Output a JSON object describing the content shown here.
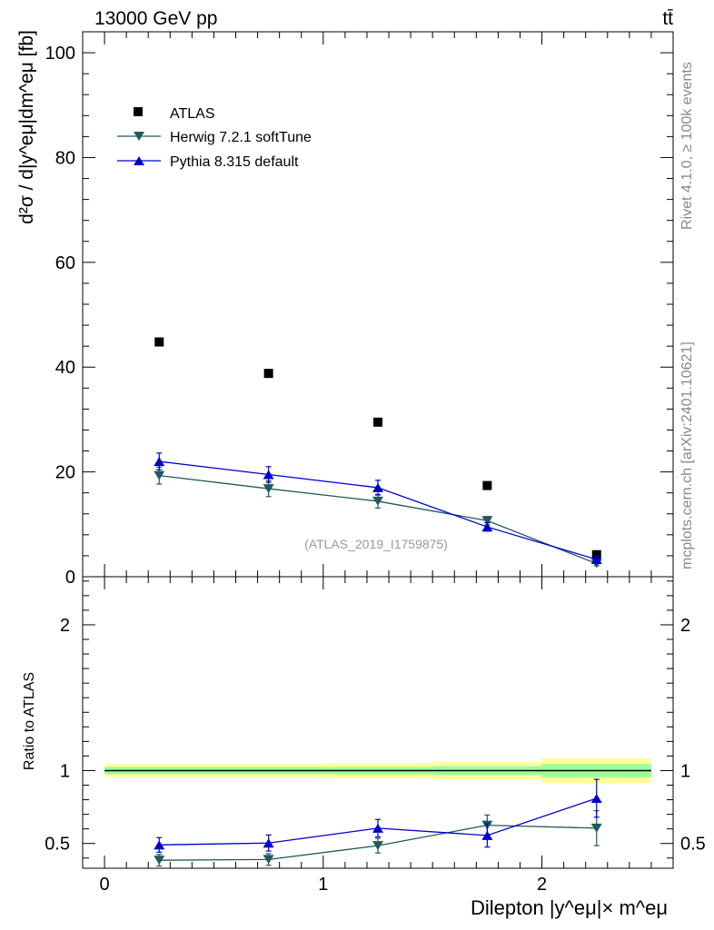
{
  "header": {
    "left": "13000 GeV pp",
    "right": "tt̄"
  },
  "side_labels": {
    "rivet": "Rivet 4.1.0, ≥ 100k events",
    "mcplots": "mcplots.cern.ch [arXiv:2401.10621]"
  },
  "analysis_id": "(ATLAS_2019_I1759875)",
  "colors": {
    "atlas": "#000000",
    "herwig": "#1e5b5b",
    "pythia": "#0000cc",
    "band_inner": "#99ff99",
    "band_outer": "#ffff99"
  },
  "chart_data": [
    {
      "type": "scatter",
      "panel": "main",
      "ylabel": "d²σ / d|y^eμ|dm^eμ [fb]",
      "ylim": [
        0,
        104
      ],
      "xlim": [
        -0.1,
        2.6
      ],
      "yticks": [
        0,
        20,
        40,
        60,
        80,
        100
      ],
      "ytick_labels": [
        "0",
        "20",
        "40",
        "60",
        "80",
        "100"
      ],
      "legend_position": "top-left",
      "x": [
        0.25,
        0.75,
        1.25,
        1.75,
        2.25
      ],
      "series": [
        {
          "name": "ATLAS",
          "marker": "square",
          "values": [
            44.8,
            38.8,
            29.5,
            17.4,
            4.2
          ]
        },
        {
          "name": "Herwig 7.2.1 softTune",
          "marker": "triangle-down",
          "values": [
            19.3,
            16.8,
            14.4,
            10.7,
            2.5
          ],
          "errors": [
            1.6,
            1.5,
            1.3,
            0.8,
            0.4
          ]
        },
        {
          "name": "Pythia 8.315 default",
          "marker": "triangle-up",
          "values": [
            22.0,
            19.5,
            17.0,
            9.5,
            3.3
          ],
          "errors": [
            1.6,
            1.5,
            1.4,
            0.8,
            0.6
          ]
        }
      ]
    },
    {
      "type": "line",
      "panel": "ratio",
      "ylabel": "Ratio to ATLAS",
      "xlabel": "Dilepton |y^eμ|× m^eμ",
      "ylim": [
        0.33,
        2.33
      ],
      "xlim": [
        -0.1,
        2.6
      ],
      "xticks": [
        0,
        1,
        2
      ],
      "xtick_labels": [
        "0",
        "1",
        "2"
      ],
      "ytick_labels_left": [
        "0.5",
        "1",
        "2"
      ],
      "ytick_labels_right": [
        "0.5",
        "1",
        "2"
      ],
      "yticks": [
        0.5,
        1,
        2
      ],
      "x": [
        0.25,
        0.75,
        1.25,
        1.75,
        2.25
      ],
      "bins": [
        0,
        0.5,
        1.0,
        1.5,
        2.0,
        2.5
      ],
      "band_inner": [
        0.025,
        0.025,
        0.025,
        0.03,
        0.045
      ],
      "band_outer": [
        0.045,
        0.045,
        0.05,
        0.06,
        0.085
      ],
      "series": [
        {
          "name": "Herwig 7.2.1 softTune",
          "values": [
            0.385,
            0.39,
            0.485,
            0.625,
            0.605
          ],
          "errors": [
            0.04,
            0.04,
            0.05,
            0.07,
            0.12
          ]
        },
        {
          "name": "Pythia 8.315 default",
          "values": [
            0.49,
            0.503,
            0.605,
            0.555,
            0.81
          ],
          "errors": [
            0.05,
            0.055,
            0.06,
            0.08,
            0.13
          ]
        }
      ]
    }
  ]
}
